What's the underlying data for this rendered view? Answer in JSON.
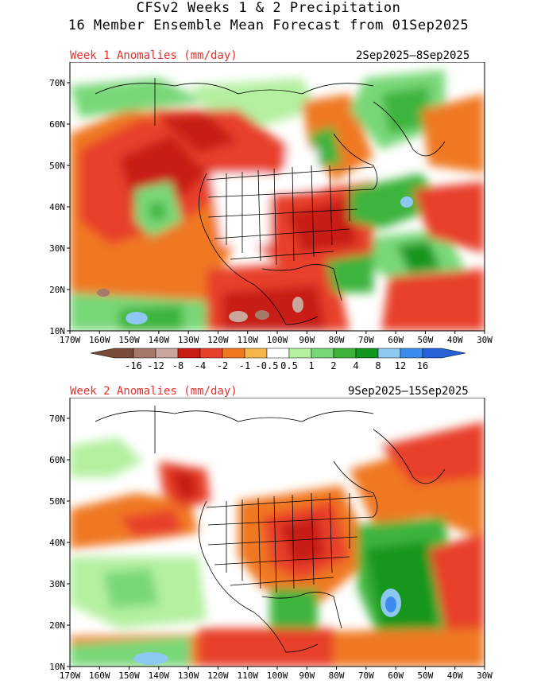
{
  "title_line1": "CFSv2 Weeks 1 & 2 Precipitation",
  "title_line2": "16 Member Ensemble Mean Forecast from 01Sep2025",
  "panels": [
    {
      "label": "Week 1 Anomalies (mm/day)",
      "dates": "2Sep2025–8Sep2025"
    },
    {
      "label": "Week 2 Anomalies (mm/day)",
      "dates": "9Sep2025–15Sep2025"
    }
  ],
  "lat_ticks": [
    "10N",
    "20N",
    "30N",
    "40N",
    "50N",
    "60N",
    "70N"
  ],
  "lon_ticks": [
    "170W",
    "160W",
    "150W",
    "140W",
    "130W",
    "120W",
    "110W",
    "100W",
    "90W",
    "80W",
    "70W",
    "60W",
    "50W",
    "40W",
    "30W"
  ],
  "colorbar": {
    "labels": [
      "-16",
      "-12",
      "-8",
      "-4",
      "-2",
      "-1",
      "-0.5",
      "0.5",
      "1",
      "2",
      "4",
      "8",
      "12",
      "16"
    ],
    "colors": [
      "#7a4a3a",
      "#a5786a",
      "#c9a79c",
      "#c81e14",
      "#e8412a",
      "#f07820",
      "#f5b44c",
      "#ffffff",
      "#b4f0a0",
      "#78d878",
      "#3cb43c",
      "#12961e",
      "#8cc8f0",
      "#3c8cf0",
      "#2860d8"
    ]
  },
  "palette": {
    "dark_red": "#c81e14",
    "red": "#e8412a",
    "orange": "#f07820",
    "light_orange": "#f5b44c",
    "light_green": "#b4f0a0",
    "green": "#78d878",
    "dark_green": "#3cb43c",
    "light_blue": "#8cc8f0",
    "blue": "#3c8cf0",
    "brown": "#a5786a"
  }
}
